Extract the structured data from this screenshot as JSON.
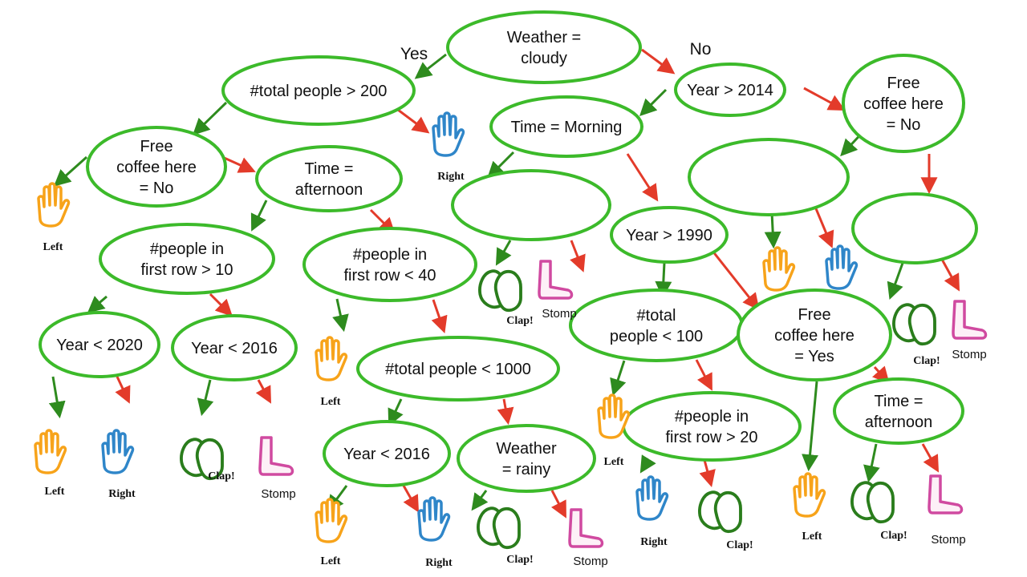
{
  "colors": {
    "node_stroke": "#3cba2a",
    "yes_edge": "#2e8b1e",
    "no_edge": "#e33b2a",
    "left": "#f7a31a",
    "right": "#2f86c9",
    "clap": "#2a7d1c",
    "stomp": "#d04aa0"
  },
  "edge_labels": {
    "yes": "Yes",
    "no": "No"
  },
  "leaf_labels": {
    "left": "Left",
    "right": "Right",
    "clap": "Clap!",
    "stomp": "Stomp"
  },
  "nodes": [
    {
      "id": "n0",
      "lines": [
        "Weather =",
        "cloudy"
      ]
    },
    {
      "id": "n1",
      "lines": [
        "#total people > 200"
      ]
    },
    {
      "id": "n2",
      "lines": [
        "Year > 2014"
      ]
    },
    {
      "id": "n3",
      "lines": [
        "Free",
        "coffee here",
        "= No"
      ]
    },
    {
      "id": "n4",
      "lines": [
        "Time =",
        "afternoon"
      ]
    },
    {
      "id": "n5",
      "lines": [
        "#people in",
        "first row > 10"
      ]
    },
    {
      "id": "n6",
      "lines": [
        "Year < 2020"
      ]
    },
    {
      "id": "n7",
      "lines": [
        "Year < 2016"
      ]
    },
    {
      "id": "n8",
      "lines": [
        "#people in",
        "first row < 40"
      ]
    },
    {
      "id": "n9",
      "lines": [
        "#total people < 1000"
      ]
    },
    {
      "id": "n10",
      "lines": [
        "Year < 2016"
      ]
    },
    {
      "id": "n11",
      "lines": [
        "Weather",
        "= rainy"
      ]
    },
    {
      "id": "n12",
      "lines": [
        "Time = Morning"
      ]
    },
    {
      "id": "n13",
      "lines": []
    },
    {
      "id": "n14",
      "lines": [
        "Year > 1990"
      ]
    },
    {
      "id": "n15",
      "lines": [
        "#total",
        "people < 100"
      ]
    },
    {
      "id": "n16",
      "lines": [
        "#people in",
        "first row > 20"
      ]
    },
    {
      "id": "n17",
      "lines": [
        "Free",
        "coffee here",
        "= Yes"
      ]
    },
    {
      "id": "n18",
      "lines": [
        "Time =",
        "afternoon"
      ]
    },
    {
      "id": "n19",
      "lines": [
        "Free",
        "coffee here",
        "= No"
      ]
    },
    {
      "id": "n20",
      "lines": []
    },
    {
      "id": "n21",
      "lines": []
    }
  ]
}
